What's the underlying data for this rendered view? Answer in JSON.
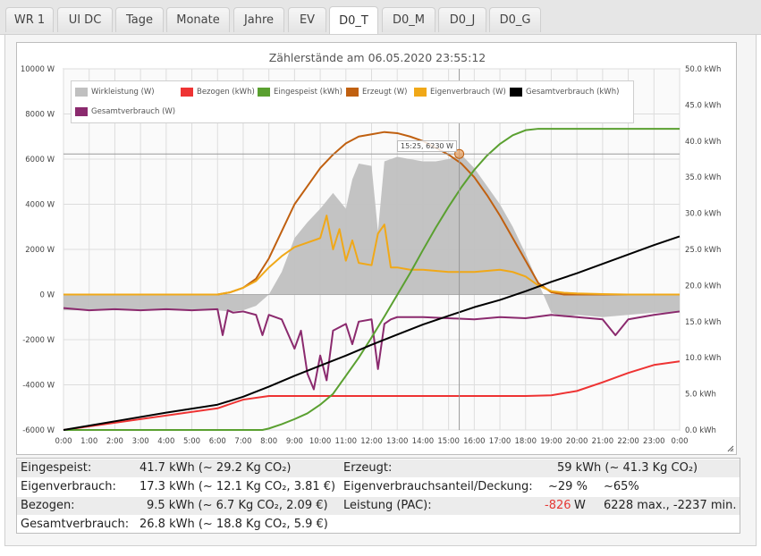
{
  "tabs": [
    {
      "label": "WR 1",
      "active": false
    },
    {
      "label": "UI DC",
      "active": false
    },
    {
      "label": "Tage",
      "active": false
    },
    {
      "label": "Monate",
      "active": false
    },
    {
      "label": "Jahre",
      "active": false
    },
    {
      "label": "EV",
      "active": false
    },
    {
      "label": "D0_T",
      "active": true
    },
    {
      "label": "D0_M",
      "active": false
    },
    {
      "label": "D0_J",
      "active": false
    },
    {
      "label": "D0_G",
      "active": false
    }
  ],
  "chart": {
    "title": "Zählerstände am 06.05.2020 23:55:12",
    "tooltip": "15:25, 6230 W",
    "legend": [
      {
        "label": "Wirkleistung (W)",
        "color": "#c0c0c0"
      },
      {
        "label": "Bezogen (kWh)",
        "color": "#ee3333"
      },
      {
        "label": "Eingespeist (kWh)",
        "color": "#5aa030"
      },
      {
        "label": "Erzeugt (W)",
        "color": "#c06010"
      },
      {
        "label": "Eigenverbrauch (W)",
        "color": "#f0a818"
      },
      {
        "label": "Gesamtverbrauch (kWh)",
        "color": "#000000"
      },
      {
        "label": "Gesamtverbrauch (W)",
        "color": "#8b2a6e"
      }
    ]
  },
  "chart_data": {
    "type": "line",
    "title": "Zählerstände am 06.05.2020 23:55:12",
    "x_ticks": [
      "0:00",
      "1:00",
      "2:00",
      "3:00",
      "4:00",
      "5:00",
      "6:00",
      "7:00",
      "8:00",
      "9:00",
      "10:00",
      "11:00",
      "12:00",
      "13:00",
      "14:00",
      "15:00",
      "16:00",
      "17:00",
      "18:00",
      "19:00",
      "20:00",
      "21:00",
      "22:00",
      "23:00",
      "0:00"
    ],
    "y_left_ticks": [
      "10000 W",
      "8000 W",
      "6000 W",
      "4000 W",
      "2000 W",
      "0 W",
      "-2000 W",
      "-4000 W",
      "-6000 W"
    ],
    "y_right_ticks": [
      "50.0 kWh",
      "45.0 kWh",
      "40.0 kWh",
      "35.0 kWh",
      "30.0 kWh",
      "25.0 kWh",
      "20.0 kWh",
      "15.0 kWh",
      "10.0 kWh",
      "5.0 kWh",
      "0.0 kWh"
    ],
    "ylim_left": [
      -6000,
      10000
    ],
    "ylim_right": [
      0,
      50
    ],
    "grid": true,
    "legend_position": "top-left",
    "series": [
      {
        "name": "Wirkleistung (W)",
        "axis": "left",
        "kind": "area",
        "color": "#c0c0c0",
        "x": [
          0,
          6,
          6.5,
          7,
          7.5,
          8,
          8.5,
          9,
          9.5,
          10,
          10.5,
          11,
          11.25,
          11.5,
          12,
          12.25,
          12.5,
          13,
          13.5,
          14,
          14.5,
          15,
          15.5,
          16,
          16.5,
          17,
          17.5,
          18,
          18.5,
          19,
          19.5,
          20,
          21,
          22,
          23,
          24
        ],
        "y": [
          -700,
          -700,
          -750,
          -700,
          -500,
          0,
          1000,
          2500,
          3200,
          3800,
          4500,
          3800,
          5100,
          5800,
          5700,
          2800,
          5900,
          6100,
          6000,
          5900,
          5900,
          6000,
          6200,
          5600,
          4800,
          4000,
          3000,
          1800,
          500,
          -800,
          -1000,
          -900,
          -1000,
          -900,
          -800,
          -800
        ]
      },
      {
        "name": "Erzeugt (W)",
        "axis": "left",
        "kind": "line",
        "color": "#c06010",
        "x": [
          0,
          6,
          6.5,
          7,
          7.5,
          8,
          8.5,
          9,
          9.5,
          10,
          10.5,
          11,
          11.5,
          12,
          12.5,
          13,
          13.5,
          14,
          14.5,
          15,
          15.5,
          16,
          16.5,
          17,
          17.5,
          18,
          18.5,
          19,
          19.5,
          20,
          24
        ],
        "y": [
          0,
          0,
          100,
          300,
          700,
          1600,
          2800,
          4000,
          4800,
          5600,
          6200,
          6700,
          7000,
          7100,
          7200,
          7150,
          7000,
          6800,
          6500,
          6200,
          5800,
          5200,
          4400,
          3500,
          2500,
          1500,
          500,
          100,
          0,
          0,
          0
        ]
      },
      {
        "name": "Eigenverbrauch (W)",
        "axis": "left",
        "kind": "line",
        "color": "#f0a818",
        "x": [
          0,
          6,
          6.5,
          7,
          7.5,
          8,
          8.5,
          9,
          9.5,
          10,
          10.25,
          10.5,
          10.75,
          11,
          11.25,
          11.5,
          12,
          12.25,
          12.5,
          12.75,
          13,
          13.5,
          14,
          14.5,
          15,
          15.5,
          16,
          16.5,
          17,
          17.5,
          18,
          18.5,
          19,
          19.5,
          20,
          21,
          22,
          23,
          24
        ],
        "y": [
          0,
          0,
          100,
          300,
          600,
          1200,
          1700,
          2100,
          2300,
          2500,
          3500,
          2000,
          2900,
          1500,
          2400,
          1400,
          1300,
          2700,
          3100,
          1200,
          1200,
          1100,
          1100,
          1050,
          1000,
          1000,
          1000,
          1050,
          1100,
          1000,
          800,
          400,
          150,
          80,
          50,
          20,
          0,
          0,
          0
        ]
      },
      {
        "name": "Gesamtverbrauch (W)",
        "axis": "left",
        "kind": "line",
        "color": "#8b2a6e",
        "x": [
          0,
          1,
          2,
          3,
          4,
          5,
          6,
          6.2,
          6.4,
          6.6,
          7,
          7.5,
          7.75,
          8,
          8.5,
          9,
          9.25,
          9.5,
          9.75,
          10,
          10.25,
          10.5,
          11,
          11.25,
          11.5,
          12,
          12.25,
          12.5,
          12.75,
          13,
          14,
          15,
          16,
          17,
          18,
          19,
          20,
          21,
          21.5,
          22,
          23,
          24
        ],
        "y": [
          -600,
          -700,
          -650,
          -700,
          -650,
          -700,
          -650,
          -1800,
          -700,
          -800,
          -750,
          -900,
          -1800,
          -900,
          -1100,
          -2400,
          -1600,
          -3500,
          -4200,
          -2700,
          -3800,
          -1600,
          -1300,
          -2200,
          -1200,
          -1100,
          -3300,
          -1300,
          -1100,
          -1000,
          -1000,
          -1050,
          -1100,
          -1000,
          -1050,
          -900,
          -1000,
          -1100,
          -1800,
          -1100,
          -900,
          -750
        ]
      },
      {
        "name": "Bezogen (kWh)",
        "axis": "right",
        "kind": "line",
        "color": "#ee3333",
        "x": [
          0,
          6,
          7,
          8,
          9,
          10,
          11,
          12,
          13,
          14,
          15,
          16,
          17,
          18,
          19,
          20,
          21,
          22,
          23,
          24
        ],
        "y": [
          0,
          3.0,
          4.2,
          4.7,
          4.7,
          4.7,
          4.7,
          4.7,
          4.7,
          4.7,
          4.7,
          4.7,
          4.7,
          4.7,
          4.8,
          5.4,
          6.6,
          7.9,
          9.0,
          9.5
        ]
      },
      {
        "name": "Eingespeist (kWh)",
        "axis": "right",
        "kind": "line",
        "color": "#5aa030",
        "x": [
          0,
          7.75,
          8,
          8.5,
          9,
          9.5,
          10,
          10.5,
          11,
          11.5,
          12,
          12.5,
          13,
          13.5,
          14,
          14.5,
          15,
          15.5,
          16,
          16.5,
          17,
          17.5,
          18,
          18.5,
          19,
          24
        ],
        "y": [
          0,
          0,
          0.2,
          0.8,
          1.5,
          2.3,
          3.5,
          5.0,
          7.5,
          10,
          12.8,
          15.7,
          18.7,
          21.7,
          24.9,
          28.0,
          30.9,
          33.6,
          36.0,
          38.0,
          39.6,
          40.8,
          41.5,
          41.7,
          41.7,
          41.7
        ]
      },
      {
        "name": "Gesamtverbrauch (kWh)",
        "axis": "right",
        "kind": "line",
        "color": "#000000",
        "x": [
          0,
          2,
          4,
          6,
          7,
          8,
          9,
          10,
          11,
          12,
          13,
          14,
          15,
          16,
          17,
          18,
          19,
          20,
          21,
          22,
          23,
          24
        ],
        "y": [
          0,
          1.2,
          2.4,
          3.5,
          4.6,
          6.0,
          7.5,
          8.9,
          10.3,
          11.8,
          13.2,
          14.6,
          15.8,
          17.0,
          18.0,
          19.2,
          20.5,
          21.7,
          23.0,
          24.3,
          25.6,
          26.8
        ]
      }
    ]
  },
  "stats": {
    "eingespeist_label": "Eingespeist:",
    "eingespeist_value": "41.7 kWh (~ 29.2 Kg CO₂)",
    "erzeugt_label": "Erzeugt:",
    "erzeugt_value": "59 kWh (~ 41.3 Kg CO₂)",
    "eigenverbrauch_label": "Eigenverbrauch:",
    "eigenverbrauch_value": "17.3 kWh (~ 12.1 Kg CO₂, 3.81 €)",
    "anteil_label": "Eigenverbrauchsanteil/Deckung:",
    "anteil_value": "~29 %",
    "deckung_value": "~65%",
    "bezogen_label": "Bezogen:",
    "bezogen_value": "9.5 kWh (~ 6.7 Kg CO₂, 2.09 €)",
    "leistung_label": "Leistung (PAC):",
    "leistung_value": "-826",
    "leistung_unit": "W",
    "leistung_minmax": "6228 max., -2237 min.",
    "gesamt_label": "Gesamtverbrauch:",
    "gesamt_value": "26.8 kWh (~ 18.8 Kg CO₂, 5.9 €)"
  },
  "colors": {
    "negative_value": "#e53935"
  },
  "icons": {
    "resize": "resize-grip-icon"
  }
}
